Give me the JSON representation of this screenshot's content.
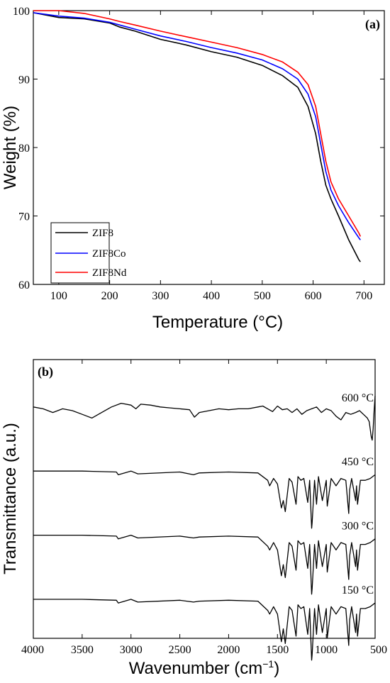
{
  "chart_data": [
    {
      "type": "line",
      "panel_label": "(a)",
      "xlabel": "Temperature (°C)",
      "ylabel": "Weight (%)",
      "xlim": [
        50,
        740
      ],
      "ylim": [
        60,
        100
      ],
      "xticks": [
        100,
        200,
        300,
        400,
        500,
        600,
        700
      ],
      "yticks": [
        60,
        70,
        80,
        90,
        100
      ],
      "legend_position": "bottom-left",
      "series": [
        {
          "name": "ZIF8",
          "color": "#000000",
          "x": [
            50,
            100,
            150,
            200,
            220,
            250,
            300,
            350,
            400,
            450,
            500,
            540,
            570,
            590,
            605,
            615,
            625,
            635,
            650,
            670,
            690,
            693
          ],
          "y": [
            99.7,
            99.0,
            98.8,
            98.2,
            97.6,
            97.0,
            95.8,
            95.0,
            94.0,
            93.2,
            92.0,
            90.5,
            88.8,
            86.0,
            82.0,
            78.0,
            74.5,
            72.5,
            70.0,
            66.5,
            63.6,
            63.3
          ]
        },
        {
          "name": "ZIF8Co",
          "color": "#0000ff",
          "x": [
            50,
            100,
            150,
            200,
            220,
            250,
            300,
            350,
            400,
            450,
            500,
            540,
            570,
            590,
            605,
            615,
            625,
            635,
            650,
            670,
            690,
            693
          ],
          "y": [
            99.7,
            99.2,
            98.9,
            98.3,
            97.9,
            97.3,
            96.3,
            95.5,
            94.6,
            93.8,
            92.8,
            91.5,
            90.0,
            87.8,
            84.5,
            80.5,
            76.5,
            73.8,
            71.5,
            69.0,
            66.8,
            66.5
          ]
        },
        {
          "name": "ZIF8Nd",
          "color": "#ff0000",
          "x": [
            50,
            100,
            150,
            200,
            220,
            250,
            300,
            350,
            400,
            450,
            500,
            540,
            570,
            590,
            605,
            615,
            625,
            635,
            650,
            670,
            690,
            693
          ],
          "y": [
            100,
            100,
            99.6,
            98.8,
            98.4,
            97.9,
            97.0,
            96.2,
            95.4,
            94.6,
            93.6,
            92.5,
            91.0,
            89.2,
            86.0,
            82.0,
            78.0,
            75.0,
            72.5,
            70.0,
            67.5,
            67.0
          ]
        }
      ]
    },
    {
      "type": "line",
      "panel_label": "(b)",
      "xlabel": "Wavenumber (cm",
      "xlabel_sup": "−1",
      "xlabel_end": ")",
      "ylabel": "Transmittance (a.u.)",
      "xlim": [
        4000,
        500
      ],
      "x_reversed": true,
      "xticks": [
        4000,
        3500,
        3000,
        2500,
        2000,
        1500,
        1000,
        500
      ],
      "yticks": [],
      "series": [
        {
          "name": "600 °C",
          "label": "600 °C",
          "baseline": 0.17,
          "x": [
            4000,
            3900,
            3800,
            3700,
            3600,
            3500,
            3400,
            3300,
            3200,
            3100,
            3000,
            2950,
            2900,
            2800,
            2700,
            2600,
            2500,
            2400,
            2350,
            2300,
            2200,
            2100,
            2000,
            1900,
            1800,
            1700,
            1650,
            1600,
            1550,
            1500,
            1450,
            1400,
            1350,
            1300,
            1250,
            1200,
            1150,
            1100,
            1050,
            1000,
            950,
            900,
            850,
            800,
            750,
            700,
            660,
            620,
            580,
            560,
            540,
            530,
            520,
            510,
            500
          ],
          "y": [
            0.0,
            0.1,
            0.3,
            0.1,
            0.2,
            0.4,
            0.6,
            0.3,
            0.0,
            -0.2,
            -0.1,
            0.1,
            -0.15,
            -0.1,
            0.0,
            0.05,
            0.1,
            0.15,
            0.55,
            0.3,
            0.2,
            0.1,
            0.15,
            0.1,
            0.1,
            0.0,
            -0.05,
            0.1,
            0.25,
            -0.05,
            0.15,
            0.1,
            0.3,
            0.1,
            0.4,
            0.2,
            0.1,
            0.0,
            0.3,
            0.1,
            0.2,
            0.5,
            0.7,
            0.3,
            0.4,
            0.3,
            0.2,
            0.4,
            0.6,
            0.8,
            1.6,
            1.8,
            1.2,
            0.2,
            -0.6
          ]
        },
        {
          "name": "450 °C",
          "label": "450 °C",
          "baseline": 0.4,
          "x": [
            4000,
            3500,
            3150,
            3130,
            3000,
            2930,
            2500,
            2360,
            2300,
            2000,
            1700,
            1600,
            1580,
            1540,
            1500,
            1460,
            1440,
            1420,
            1380,
            1350,
            1310,
            1290,
            1260,
            1230,
            1190,
            1170,
            1150,
            1145,
            1120,
            1100,
            1080,
            1040,
            1000,
            990,
            950,
            900,
            850,
            800,
            770,
            760,
            740,
            700,
            690,
            680,
            650,
            600,
            550,
            500
          ],
          "y": [
            0.0,
            0.0,
            0.05,
            0.2,
            0.0,
            0.15,
            0.05,
            0.2,
            0.1,
            0.05,
            0.1,
            0.5,
            0.8,
            0.4,
            0.7,
            2.0,
            1.6,
            2.2,
            0.4,
            0.6,
            1.8,
            0.3,
            0.5,
            0.4,
            1.7,
            0.5,
            3.1,
            2.8,
            0.5,
            1.8,
            0.3,
            1.6,
            0.5,
            1.9,
            0.4,
            0.8,
            0.4,
            0.5,
            2.3,
            1.0,
            0.4,
            1.6,
            0.8,
            1.8,
            0.5,
            0.5,
            0.4,
            0.2
          ]
        },
        {
          "name": "300 °C",
          "label": "300 °C",
          "baseline": 0.63,
          "x": [
            4000,
            3500,
            3150,
            3130,
            3000,
            2930,
            2500,
            2360,
            2300,
            2000,
            1700,
            1600,
            1580,
            1540,
            1500,
            1460,
            1440,
            1420,
            1380,
            1350,
            1310,
            1290,
            1260,
            1230,
            1190,
            1170,
            1150,
            1145,
            1120,
            1100,
            1080,
            1040,
            1000,
            990,
            950,
            900,
            850,
            800,
            770,
            760,
            740,
            700,
            690,
            680,
            650,
            600,
            550,
            500
          ],
          "y": [
            0.0,
            0.0,
            0.05,
            0.2,
            0.0,
            0.15,
            0.05,
            0.15,
            0.1,
            0.05,
            0.1,
            0.6,
            0.8,
            0.4,
            0.8,
            2.2,
            1.6,
            2.3,
            0.4,
            0.6,
            1.9,
            0.3,
            0.5,
            0.4,
            1.8,
            0.5,
            3.2,
            2.9,
            0.5,
            1.8,
            0.3,
            1.7,
            0.5,
            2.0,
            0.4,
            0.8,
            0.4,
            0.5,
            2.4,
            1.1,
            0.4,
            1.7,
            0.8,
            1.9,
            0.5,
            0.5,
            0.4,
            0.2
          ]
        },
        {
          "name": "150 °C",
          "label": "150 °C",
          "baseline": 0.86,
          "x": [
            4000,
            3500,
            3150,
            3130,
            3000,
            2930,
            2500,
            2360,
            2300,
            2000,
            1700,
            1600,
            1580,
            1540,
            1500,
            1460,
            1440,
            1420,
            1380,
            1350,
            1310,
            1290,
            1260,
            1230,
            1190,
            1170,
            1150,
            1145,
            1120,
            1100,
            1080,
            1040,
            1000,
            990,
            950,
            900,
            850,
            800,
            770,
            760,
            740,
            700,
            690,
            680,
            650,
            600,
            550,
            500
          ],
          "y": [
            0.0,
            0.0,
            0.05,
            0.2,
            0.0,
            0.15,
            0.05,
            0.15,
            0.1,
            0.05,
            0.1,
            0.6,
            0.8,
            0.4,
            0.8,
            2.3,
            1.6,
            2.4,
            0.4,
            0.6,
            2.0,
            0.3,
            0.5,
            0.4,
            1.9,
            0.5,
            3.3,
            3.0,
            0.5,
            1.9,
            0.3,
            1.8,
            0.5,
            2.1,
            0.4,
            0.8,
            0.4,
            0.5,
            2.5,
            1.1,
            0.4,
            1.8,
            0.8,
            2.0,
            0.5,
            0.5,
            0.4,
            0.2
          ]
        }
      ]
    }
  ]
}
